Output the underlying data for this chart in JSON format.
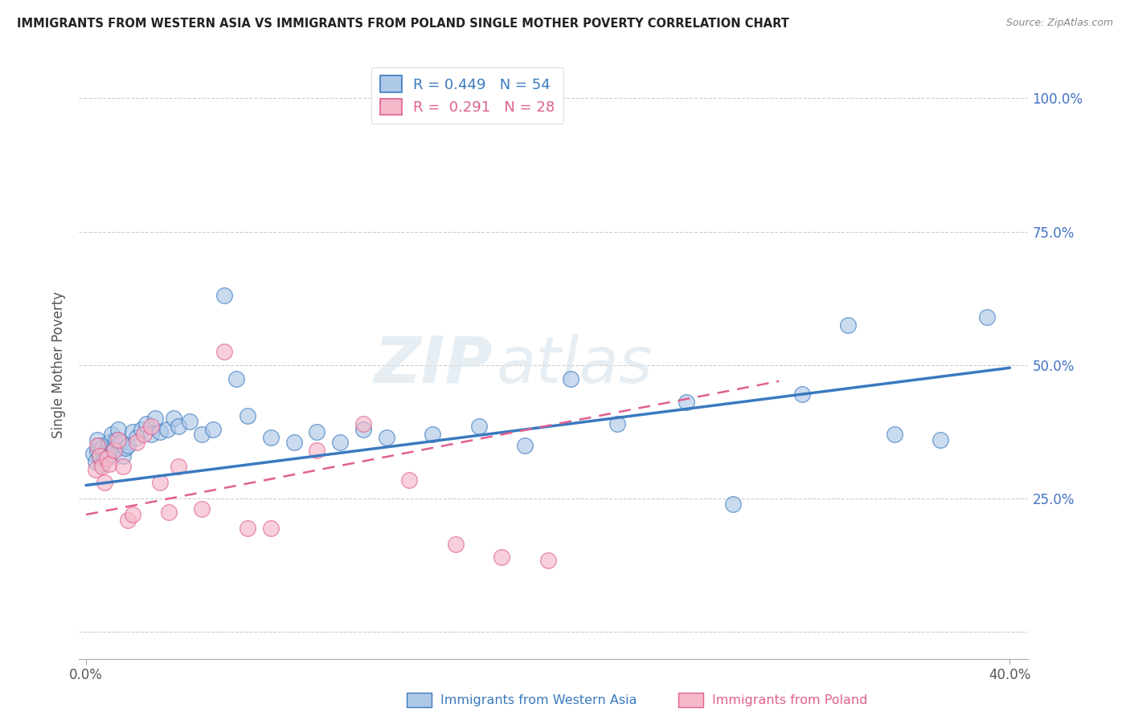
{
  "title": "IMMIGRANTS FROM WESTERN ASIA VS IMMIGRANTS FROM POLAND SINGLE MOTHER POVERTY CORRELATION CHART",
  "source": "Source: ZipAtlas.com",
  "ylabel": "Single Mother Poverty",
  "legend_label1": "Immigrants from Western Asia",
  "legend_label2": "Immigrants from Poland",
  "R1": 0.449,
  "N1": 54,
  "R2": 0.291,
  "N2": 28,
  "color_blue": "#aec8e8",
  "color_pink": "#f4b8c8",
  "color_line_blue": "#3a7abf",
  "color_line_pink": "#e06090",
  "watermark_zip": "ZIP",
  "watermark_atlas": "atlas",
  "xlim_min": 0.0,
  "xlim_max": 0.4,
  "ylim_min": -0.05,
  "ylim_max": 1.05,
  "ytick_positions": [
    0.0,
    0.25,
    0.5,
    0.75,
    1.0
  ],
  "ytick_labels_right": [
    "",
    "25.0%",
    "50.0%",
    "75.0%",
    "100.0%"
  ],
  "xtick_positions": [
    0.0,
    0.4
  ],
  "xtick_labels": [
    "0.0%",
    "40.0%"
  ],
  "blue_x": [
    0.003,
    0.004,
    0.005,
    0.005,
    0.006,
    0.006,
    0.007,
    0.007,
    0.008,
    0.009,
    0.01,
    0.01,
    0.011,
    0.012,
    0.013,
    0.014,
    0.015,
    0.016,
    0.017,
    0.018,
    0.02,
    0.022,
    0.024,
    0.026,
    0.028,
    0.03,
    0.032,
    0.035,
    0.038,
    0.04,
    0.045,
    0.05,
    0.055,
    0.06,
    0.065,
    0.07,
    0.08,
    0.09,
    0.1,
    0.11,
    0.12,
    0.13,
    0.15,
    0.17,
    0.19,
    0.21,
    0.23,
    0.26,
    0.28,
    0.31,
    0.33,
    0.35,
    0.37,
    0.39
  ],
  "blue_y": [
    0.335,
    0.32,
    0.34,
    0.36,
    0.33,
    0.35,
    0.315,
    0.345,
    0.325,
    0.34,
    0.33,
    0.355,
    0.37,
    0.345,
    0.36,
    0.38,
    0.355,
    0.33,
    0.345,
    0.35,
    0.375,
    0.365,
    0.38,
    0.39,
    0.37,
    0.4,
    0.375,
    0.38,
    0.4,
    0.385,
    0.395,
    0.37,
    0.38,
    0.63,
    0.475,
    0.405,
    0.365,
    0.355,
    0.375,
    0.355,
    0.38,
    0.365,
    0.37,
    0.385,
    0.35,
    0.475,
    0.39,
    0.43,
    0.24,
    0.445,
    0.575,
    0.37,
    0.36,
    0.59
  ],
  "pink_x": [
    0.004,
    0.005,
    0.006,
    0.007,
    0.008,
    0.009,
    0.01,
    0.012,
    0.014,
    0.016,
    0.018,
    0.02,
    0.022,
    0.025,
    0.028,
    0.032,
    0.036,
    0.04,
    0.05,
    0.06,
    0.07,
    0.08,
    0.1,
    0.12,
    0.14,
    0.16,
    0.18,
    0.2
  ],
  "pink_y": [
    0.305,
    0.35,
    0.33,
    0.31,
    0.28,
    0.325,
    0.315,
    0.34,
    0.36,
    0.31,
    0.21,
    0.22,
    0.355,
    0.37,
    0.385,
    0.28,
    0.225,
    0.31,
    0.23,
    0.525,
    0.195,
    0.195,
    0.34,
    0.39,
    0.285,
    0.165,
    0.14,
    0.135
  ],
  "blue_line_x": [
    0.0,
    0.4
  ],
  "blue_line_y": [
    0.275,
    0.495
  ],
  "pink_line_x": [
    0.0,
    0.3
  ],
  "pink_line_y": [
    0.22,
    0.47
  ]
}
